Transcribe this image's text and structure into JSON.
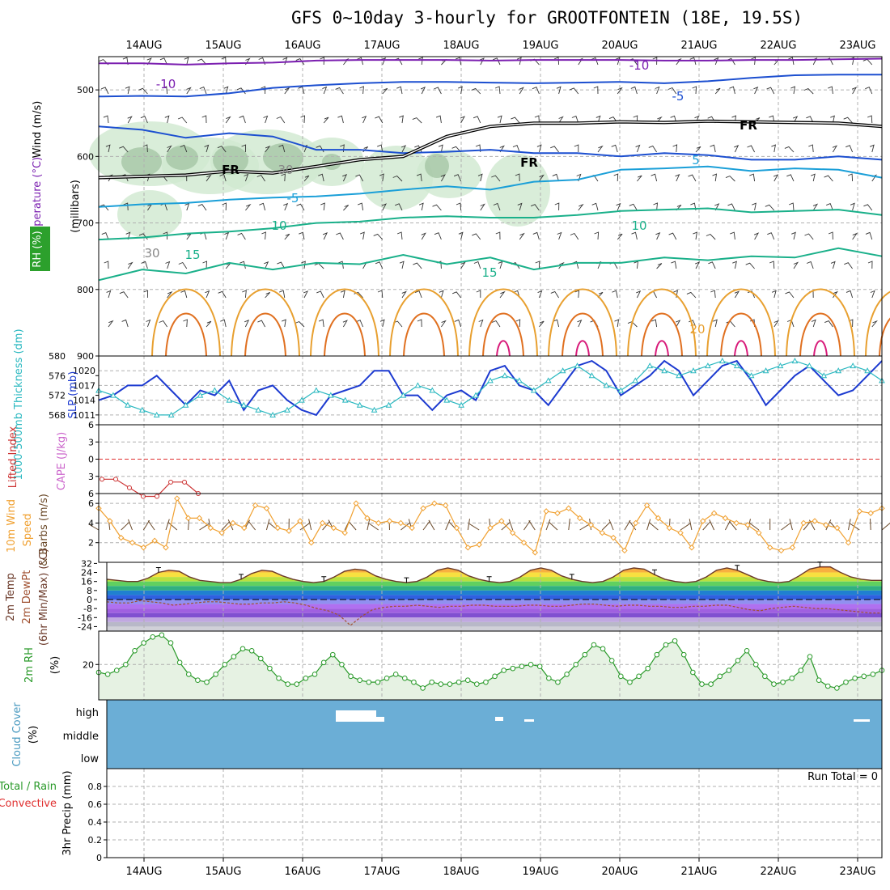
{
  "title": "GFS 0~10day 3-hourly for GROOTFONTEIN (18E, 19.5S)",
  "colors": {
    "temp_cold": "#7b1fb0",
    "temp_mid": "#1c4fd0",
    "temp_cyan": "#1a9fd8",
    "temp_teal": "#1ab08a",
    "temp_warm": "#e8a030",
    "temp_hot": "#e07020",
    "temp_hotter": "#d81b7a",
    "freezing": "#000000",
    "rh_fill": "#cfe8cf",
    "slp": "#1c3ad0",
    "thickness": "#2ab8c0",
    "lifted_index": "#cc3333",
    "wind10m": "#f0a030",
    "cloud": "#6baed6",
    "rh2m": "#2a9a2a"
  },
  "chart_data": [
    {
      "type": "line",
      "panel": "upper_air_cross_section",
      "y_axis_title": "(millibars)",
      "left_labels": [
        "Wind (m/s)",
        "Temperature (°C)",
        "RH (%)"
      ],
      "ylim": [
        900,
        450
      ],
      "y_ticks": [
        500,
        600,
        700,
        800,
        900
      ],
      "x_ticks": [
        "14AUG",
        "15AUG",
        "16AUG",
        "17AUG",
        "18AUG",
        "19AUG",
        "20AUG",
        "21AUG",
        "22AUG",
        "23AUG"
      ],
      "contour_labels": [
        {
          "text": "-10"
        },
        {
          "text": "-10"
        },
        {
          "text": "-5"
        },
        {
          "text": "5"
        },
        {
          "text": "-5"
        },
        {
          "text": "10"
        },
        {
          "text": "10"
        },
        {
          "text": "15"
        },
        {
          "text": "15"
        },
        {
          "text": "20"
        },
        {
          "text": "FR"
        },
        {
          "text": "FR"
        },
        {
          "text": "FR"
        },
        {
          "text": "30"
        },
        {
          "text": "30"
        }
      ],
      "series": [
        {
          "name": "-10",
          "values": [
            460,
            460,
            462,
            460,
            459,
            456,
            455,
            455,
            455,
            456,
            455,
            455,
            455,
            456,
            456,
            455,
            455,
            454,
            453
          ]
        },
        {
          "name": "-5",
          "values": [
            510,
            509,
            510,
            505,
            497,
            493,
            490,
            488,
            488,
            489,
            490,
            489,
            488,
            490,
            487,
            482,
            478,
            477,
            477
          ]
        },
        {
          "name": "5",
          "values": [
            555,
            560,
            572,
            565,
            570,
            590,
            590,
            595,
            593,
            590,
            595,
            595,
            600,
            595,
            598,
            605,
            605,
            600,
            605
          ]
        },
        {
          "name": "FR",
          "values": [
            632,
            630,
            628,
            622,
            625,
            615,
            605,
            600,
            570,
            555,
            550,
            550,
            548,
            549,
            547,
            548,
            549,
            550,
            555
          ]
        },
        {
          "name": "5b",
          "values": [
            676,
            672,
            670,
            665,
            662,
            660,
            656,
            650,
            645,
            650,
            638,
            635,
            620,
            618,
            615,
            622,
            618,
            620,
            632
          ]
        },
        {
          "name": "10",
          "values": [
            725,
            722,
            716,
            713,
            708,
            700,
            698,
            692,
            690,
            692,
            692,
            688,
            682,
            680,
            678,
            684,
            682,
            680,
            688
          ]
        },
        {
          "name": "15",
          "values": [
            786,
            770,
            776,
            760,
            770,
            760,
            762,
            748,
            762,
            752,
            770,
            760,
            760,
            752,
            756,
            750,
            752,
            738,
            750
          ]
        }
      ]
    },
    {
      "type": "line",
      "panel": "slp_thickness",
      "left_labels": [
        "1000-500mb Thickness (dm)",
        "SLP (mb)"
      ],
      "ylim_left": [
        566,
        580
      ],
      "y_ticks_left": [
        568,
        572,
        576,
        580
      ],
      "ylim_right": [
        1009,
        1023
      ],
      "y_ticks_right": [
        1011,
        1014,
        1017,
        1020
      ],
      "series": [
        {
          "name": "SLP",
          "values": [
            1014,
            1015,
            1017,
            1017,
            1019,
            1016,
            1013,
            1016,
            1015,
            1018,
            1012,
            1016,
            1017,
            1014,
            1012,
            1011,
            1015,
            1016,
            1017,
            1020,
            1020,
            1015,
            1015,
            1012,
            1015,
            1016,
            1014,
            1020,
            1021,
            1017,
            1016,
            1013,
            1017,
            1021,
            1022,
            1020,
            1015,
            1017,
            1019,
            1022,
            1020,
            1015,
            1018,
            1021,
            1022,
            1018,
            1013,
            1016,
            1019,
            1021,
            1018,
            1015,
            1016,
            1019,
            1022
          ]
        },
        {
          "name": "Thickness",
          "values": [
            573,
            572,
            570,
            569,
            568,
            568,
            570,
            572,
            573,
            571,
            570,
            569,
            568,
            569,
            571,
            573,
            572,
            571,
            570,
            569,
            570,
            572,
            574,
            573,
            571,
            570,
            572,
            575,
            576,
            575,
            573,
            575,
            577,
            578,
            576,
            574,
            573,
            575,
            578,
            577,
            576,
            577,
            578,
            579,
            578,
            576,
            577,
            578,
            579,
            578,
            576,
            577,
            578,
            577,
            575
          ]
        }
      ]
    },
    {
      "type": "line",
      "panel": "lifted_index_cape",
      "left_labels": [
        "Lifted Index",
        "CAPE (J/kg)"
      ],
      "ylim": [
        6,
        -6
      ],
      "y_ticks": [
        -6,
        -3,
        0,
        3,
        6
      ],
      "series": [
        {
          "name": "Lifted Index",
          "values": [
            3.5,
            3.5,
            5.0,
            6.5,
            6.5,
            4.0,
            4.0,
            6.0
          ]
        }
      ]
    },
    {
      "type": "line",
      "panel": "wind10m",
      "left_labels": [
        "10m Wind Speed",
        "& Barbs (m/s)"
      ],
      "ylim": [
        0,
        7
      ],
      "y_ticks": [
        2,
        4,
        6
      ],
      "series": [
        {
          "name": "10m Wind Speed",
          "values": [
            5.5,
            4.2,
            2.5,
            2.0,
            1.5,
            2.2,
            1.5,
            6.5,
            4.5,
            4.5,
            3.5,
            3.0,
            4.0,
            3.5,
            5.8,
            5.5,
            3.5,
            3.2,
            4.2,
            2.0,
            4.0,
            3.5,
            3.0,
            6.0,
            4.5,
            4.0,
            4.2,
            4.0,
            3.5,
            5.5,
            6.0,
            5.8,
            3.5,
            1.5,
            1.8,
            3.5,
            4.2,
            3.0,
            2.0,
            1.0,
            5.2,
            5.0,
            5.5,
            4.5,
            3.8,
            3.0,
            2.5,
            1.2,
            4.0,
            5.8,
            4.5,
            3.5,
            3.0,
            1.5,
            4.2,
            5.0,
            4.5,
            4.0,
            3.8,
            3.0,
            1.5,
            1.2,
            1.5,
            4.0,
            4.2,
            3.8,
            3.5,
            2.0,
            5.2,
            5.0,
            5.5
          ]
        }
      ]
    },
    {
      "type": "area",
      "panel": "temp2m",
      "left_labels": [
        "2m Temp",
        "2m DewPt",
        "(6hr Min/Max) (°C)"
      ],
      "ylim": [
        -28,
        33
      ],
      "y_ticks": [
        -24,
        -16,
        -8,
        0,
        8,
        16,
        24,
        32
      ],
      "series": [
        {
          "name": "2m Temp",
          "values": [
            18,
            17,
            16,
            16,
            19,
            24,
            26,
            25,
            20,
            17,
            16,
            15,
            15,
            18,
            23,
            26,
            25,
            21,
            18,
            16,
            15,
            16,
            20,
            25,
            27,
            26,
            21,
            18,
            16,
            15,
            16,
            20,
            26,
            28,
            26,
            21,
            18,
            16,
            15,
            16,
            20,
            26,
            28,
            26,
            21,
            18,
            16,
            15,
            16,
            20,
            26,
            28,
            27,
            22,
            18,
            16,
            15,
            16,
            20,
            26,
            28,
            26,
            22,
            18,
            16,
            15,
            16,
            21,
            27,
            29,
            29,
            24,
            20,
            18,
            17,
            17
          ]
        },
        {
          "name": "2m DewPt",
          "values": [
            -2,
            -3,
            -3,
            -1,
            -2,
            -3,
            -5,
            -4,
            -3,
            -2,
            -2,
            -3,
            -4,
            -4,
            -3,
            -3,
            -2,
            -3,
            -5,
            -8,
            -10,
            -14,
            -23,
            -15,
            -9,
            -7,
            -6,
            -6,
            -5,
            -6,
            -7,
            -6,
            -6,
            -5,
            -5,
            -6,
            -6,
            -6,
            -5,
            -5,
            -6,
            -6,
            -5,
            -4,
            -4,
            -5,
            -6,
            -5,
            -5,
            -6,
            -6,
            -7,
            -7,
            -6,
            -6,
            -5,
            -5,
            -7,
            -9,
            -10,
            -8,
            -7,
            -6,
            -7,
            -8,
            -8,
            -9,
            -10,
            -11,
            -12,
            -12
          ]
        }
      ]
    },
    {
      "type": "area",
      "panel": "rh2m",
      "left_labels": [
        "2m RH",
        "(%)"
      ],
      "ylim": [
        2,
        37
      ],
      "y_ticks": [
        20
      ],
      "series": [
        {
          "name": "2m RH",
          "values": [
            16,
            15,
            17,
            20,
            27,
            31,
            34,
            35,
            31,
            21,
            15,
            12,
            11,
            15,
            20,
            24,
            28,
            27,
            23,
            18,
            13,
            10,
            10,
            13,
            15,
            21,
            25,
            20,
            14,
            12,
            11,
            11,
            13,
            15,
            13,
            11,
            8,
            11,
            10,
            10,
            11,
            12,
            10,
            11,
            14,
            17,
            18,
            19,
            20,
            19,
            13,
            11,
            15,
            20,
            25,
            30,
            28,
            22,
            14,
            11,
            14,
            18,
            25,
            30,
            32,
            25,
            16,
            10,
            10,
            14,
            17,
            22,
            27,
            20,
            14,
            10,
            11,
            13,
            17,
            24,
            12,
            9,
            8,
            11,
            13,
            14,
            15,
            17
          ]
        }
      ]
    },
    {
      "type": "heatmap",
      "panel": "cloud_cover",
      "left_labels": [
        "Cloud Cover",
        "(%)"
      ],
      "levels": [
        "high",
        "middle",
        "low"
      ],
      "coverage_percent": 100
    },
    {
      "type": "bar",
      "panel": "precip",
      "left_labels": [
        "Total / Rain",
        "Convective",
        "3hr Precip (mm)"
      ],
      "annotation": "Run Total = 0",
      "ylim": [
        0,
        1.0
      ],
      "y_ticks": [
        0,
        0.2,
        0.4,
        0.6,
        0.8
      ],
      "values": []
    }
  ]
}
